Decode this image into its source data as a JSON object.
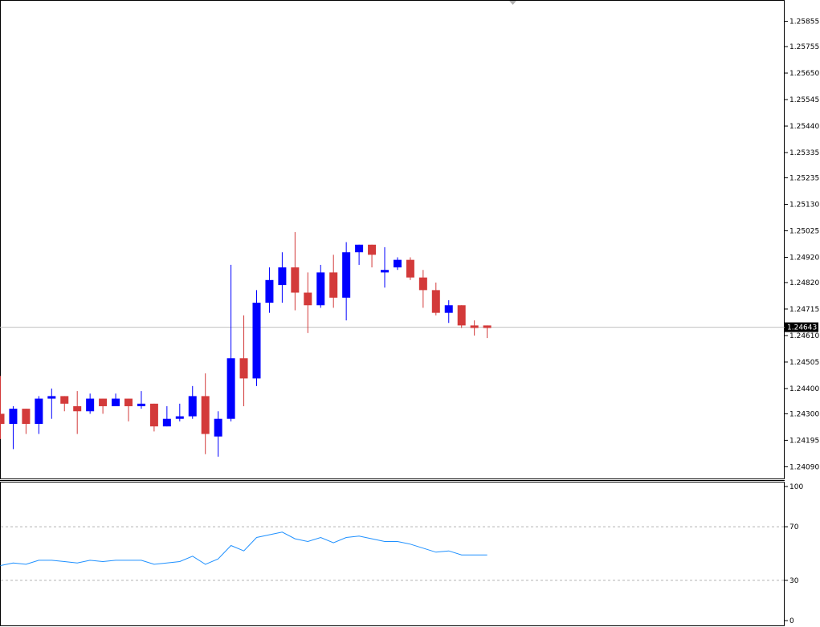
{
  "chart_data": [
    {
      "type": "candlestick",
      "title": "",
      "xlabel": "",
      "ylabel": "",
      "ylim": [
        1.2405,
        1.2593
      ],
      "y_ticks": [
        "1.25855",
        "1.25755",
        "1.25650",
        "1.25545",
        "1.25440",
        "1.25335",
        "1.25235",
        "1.25130",
        "1.25025",
        "1.24920",
        "1.24820",
        "1.24715",
        "1.24610",
        "1.24505",
        "1.24400",
        "1.24300",
        "1.24195",
        "1.24090"
      ],
      "current_price": "1.24643",
      "current_price_value": 1.24643,
      "up_color": "#0000ff",
      "down_color": "#d33a3a",
      "grid": false,
      "candles": [
        {
          "o": 1.243,
          "h": 1.2445,
          "l": 1.242,
          "c": 1.2426
        },
        {
          "o": 1.2426,
          "h": 1.2433,
          "l": 1.2416,
          "c": 1.2432
        },
        {
          "o": 1.2432,
          "h": 1.2432,
          "l": 1.2422,
          "c": 1.2426
        },
        {
          "o": 1.2426,
          "h": 1.2437,
          "l": 1.2422,
          "c": 1.2436
        },
        {
          "o": 1.2436,
          "h": 1.244,
          "l": 1.2428,
          "c": 1.2437
        },
        {
          "o": 1.2437,
          "h": 1.2437,
          "l": 1.2431,
          "c": 1.2434
        },
        {
          "o": 1.2433,
          "h": 1.2439,
          "l": 1.2422,
          "c": 1.2431
        },
        {
          "o": 1.2431,
          "h": 1.2438,
          "l": 1.243,
          "c": 1.2436
        },
        {
          "o": 1.2436,
          "h": 1.2436,
          "l": 1.243,
          "c": 1.2433
        },
        {
          "o": 1.2433,
          "h": 1.2438,
          "l": 1.2433,
          "c": 1.2436
        },
        {
          "o": 1.2436,
          "h": 1.2436,
          "l": 1.2427,
          "c": 1.2433
        },
        {
          "o": 1.2433,
          "h": 1.2439,
          "l": 1.2432,
          "c": 1.2434
        },
        {
          "o": 1.2434,
          "h": 1.2434,
          "l": 1.2423,
          "c": 1.2425
        },
        {
          "o": 1.2425,
          "h": 1.2433,
          "l": 1.2425,
          "c": 1.2428
        },
        {
          "o": 1.2428,
          "h": 1.2434,
          "l": 1.2427,
          "c": 1.2429
        },
        {
          "o": 1.2429,
          "h": 1.2441,
          "l": 1.2428,
          "c": 1.2437
        },
        {
          "o": 1.2437,
          "h": 1.2446,
          "l": 1.2414,
          "c": 1.2422
        },
        {
          "o": 1.2421,
          "h": 1.2431,
          "l": 1.2413,
          "c": 1.2428
        },
        {
          "o": 1.2428,
          "h": 1.2489,
          "l": 1.2427,
          "c": 1.2452
        },
        {
          "o": 1.2452,
          "h": 1.2469,
          "l": 1.2433,
          "c": 1.2444
        },
        {
          "o": 1.2444,
          "h": 1.2479,
          "l": 1.2441,
          "c": 1.2474
        },
        {
          "o": 1.2474,
          "h": 1.2488,
          "l": 1.247,
          "c": 1.2483
        },
        {
          "o": 1.2481,
          "h": 1.2494,
          "l": 1.2474,
          "c": 1.2488
        },
        {
          "o": 1.2488,
          "h": 1.2502,
          "l": 1.2471,
          "c": 1.2478
        },
        {
          "o": 1.2478,
          "h": 1.2486,
          "l": 1.2462,
          "c": 1.2473
        },
        {
          "o": 1.2473,
          "h": 1.2489,
          "l": 1.2472,
          "c": 1.2486
        },
        {
          "o": 1.2486,
          "h": 1.2493,
          "l": 1.2472,
          "c": 1.2476
        },
        {
          "o": 1.2476,
          "h": 1.2498,
          "l": 1.2467,
          "c": 1.2494
        },
        {
          "o": 1.2494,
          "h": 1.2497,
          "l": 1.2489,
          "c": 1.2497
        },
        {
          "o": 1.2497,
          "h": 1.2497,
          "l": 1.2488,
          "c": 1.2493
        },
        {
          "o": 1.2486,
          "h": 1.2496,
          "l": 1.248,
          "c": 1.2487
        },
        {
          "o": 1.2488,
          "h": 1.2492,
          "l": 1.2487,
          "c": 1.2491
        },
        {
          "o": 1.2491,
          "h": 1.2492,
          "l": 1.2483,
          "c": 1.2484
        },
        {
          "o": 1.2484,
          "h": 1.2487,
          "l": 1.2472,
          "c": 1.2479
        },
        {
          "o": 1.2479,
          "h": 1.2482,
          "l": 1.2469,
          "c": 1.247
        },
        {
          "o": 1.247,
          "h": 1.2475,
          "l": 1.2466,
          "c": 1.2473
        },
        {
          "o": 1.2473,
          "h": 1.2473,
          "l": 1.2464,
          "c": 1.2465
        },
        {
          "o": 1.2465,
          "h": 1.2467,
          "l": 1.2461,
          "c": 1.2464
        },
        {
          "o": 1.2465,
          "h": 1.2465,
          "l": 1.246,
          "c": 1.2464
        }
      ]
    },
    {
      "type": "line",
      "title": "",
      "xlabel": "",
      "ylabel": "",
      "ylim": [
        0,
        100
      ],
      "y_ticks": [
        "100",
        "70",
        "30",
        "0"
      ],
      "levels": [
        70,
        30
      ],
      "line_color": "#1e90ff",
      "values": [
        41,
        43,
        42,
        45,
        45,
        44,
        43,
        45,
        44,
        45,
        45,
        45,
        42,
        43,
        44,
        48,
        42,
        46,
        56,
        52,
        62,
        64,
        66,
        61,
        59,
        62,
        58,
        62,
        63,
        61,
        59,
        59,
        57,
        54,
        51,
        52,
        49,
        49,
        49
      ]
    }
  ]
}
